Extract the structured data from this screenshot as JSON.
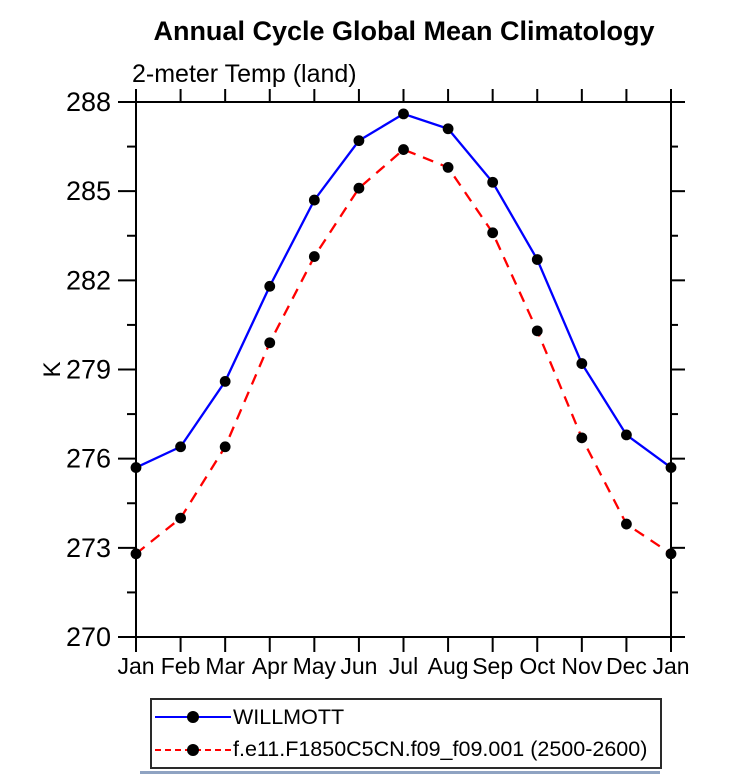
{
  "page": {
    "title": "Annual Cycle Global Mean Climatology",
    "subtitle": "2-meter Temp (land)"
  },
  "chart_data": {
    "type": "line",
    "title": "Annual Cycle Global Mean Climatology",
    "subtitle": "2-meter Temp (land)",
    "xlabel": "",
    "ylabel": "K",
    "x_tick_labels": [
      "Jan",
      "Feb",
      "Mar",
      "Apr",
      "May",
      "Jun",
      "Jul",
      "Aug",
      "Sep",
      "Oct",
      "Nov",
      "Dec",
      "Jan"
    ],
    "y_ticks": [
      270,
      273,
      276,
      279,
      282,
      285,
      288
    ],
    "y_minor_ticks": [
      271.5,
      274.5,
      277.5,
      280.5,
      283.5,
      286.5
    ],
    "ylim": [
      270,
      288
    ],
    "grid": false,
    "legend_position": "bottom",
    "axis_color": "#000000",
    "marker_color": "#000000",
    "series": [
      {
        "name": "WILLMOTT",
        "color": "#0000ff",
        "line_style": "solid",
        "marker": "circle",
        "values": [
          275.7,
          276.4,
          278.6,
          281.8,
          284.7,
          286.7,
          287.6,
          287.1,
          285.3,
          282.7,
          279.2,
          276.8,
          275.7
        ]
      },
      {
        "name": "f.e11.F1850C5CN.f09_f09.001 (2500-2600)",
        "color": "#ff0000",
        "line_style": "dashed",
        "marker": "circle",
        "values": [
          272.8,
          274.0,
          276.4,
          279.9,
          282.8,
          285.1,
          286.4,
          285.8,
          283.6,
          280.3,
          276.7,
          273.8,
          272.8
        ]
      }
    ]
  }
}
